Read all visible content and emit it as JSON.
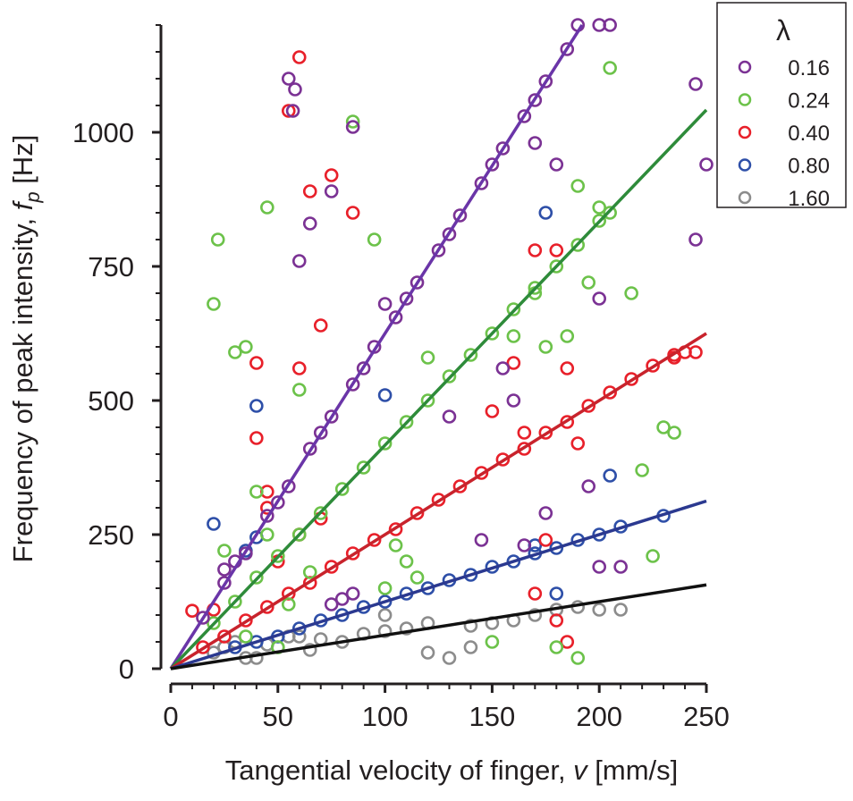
{
  "chart_data": {
    "type": "scatter",
    "xlabel": "Tangential velocity of finger, v [mm/s]",
    "xlabel_parts": {
      "pre": "Tangential velocity of finger, ",
      "var": "v",
      "post": " [mm/s]"
    },
    "ylabel": "Frequency of peak intensity, f_p [Hz]",
    "ylabel_parts": {
      "pre": "Frequency of peak intensity, ",
      "var": "f",
      "sub": "p",
      "post": " [Hz]"
    },
    "xlim": [
      0,
      250
    ],
    "ylim": [
      0,
      1200
    ],
    "x_ticks": [
      0,
      50,
      100,
      150,
      200,
      250
    ],
    "x_tick_labels": [
      "0",
      "50",
      "100",
      "150",
      "200",
      "250"
    ],
    "y_ticks": [
      0,
      250,
      500,
      750,
      1000
    ],
    "y_tick_labels": [
      "0",
      "250",
      "500",
      "750",
      "1000"
    ],
    "grid": false,
    "legend": {
      "title": "λ",
      "placement": "top-right"
    },
    "series": [
      {
        "name": "0.16",
        "color": "#7b3294",
        "line_color": "#6a35a8",
        "fit_slope": 6.25,
        "points": [
          [
            15,
            95
          ],
          [
            25,
            160
          ],
          [
            35,
            215
          ],
          [
            45,
            285
          ],
          [
            55,
            340
          ],
          [
            65,
            410
          ],
          [
            75,
            470
          ],
          [
            85,
            530
          ],
          [
            95,
            600
          ],
          [
            105,
            655
          ],
          [
            115,
            720
          ],
          [
            125,
            780
          ],
          [
            135,
            845
          ],
          [
            145,
            905
          ],
          [
            155,
            970
          ],
          [
            165,
            1030
          ],
          [
            175,
            1095
          ],
          [
            185,
            1155
          ],
          [
            30,
            200
          ],
          [
            50,
            310
          ],
          [
            70,
            440
          ],
          [
            90,
            560
          ],
          [
            110,
            690
          ],
          [
            130,
            810
          ],
          [
            150,
            940
          ],
          [
            170,
            1060
          ],
          [
            55,
            1100
          ],
          [
            58,
            1080
          ],
          [
            57,
            1040
          ],
          [
            25,
            185
          ],
          [
            60,
            760
          ],
          [
            190,
            1200
          ],
          [
            200,
            1200
          ],
          [
            205,
            1200
          ],
          [
            170,
            980
          ],
          [
            180,
            940
          ],
          [
            200,
            690
          ],
          [
            195,
            340
          ],
          [
            175,
            290
          ],
          [
            165,
            230
          ],
          [
            245,
            1090
          ],
          [
            250,
            940
          ],
          [
            245,
            800
          ],
          [
            160,
            500
          ],
          [
            75,
            890
          ],
          [
            65,
            830
          ],
          [
            100,
            680
          ],
          [
            130,
            470
          ],
          [
            155,
            560
          ],
          [
            145,
            240
          ],
          [
            85,
            1010
          ],
          [
            200,
            190
          ],
          [
            210,
            190
          ],
          [
            85,
            140
          ],
          [
            80,
            130
          ],
          [
            75,
            120
          ]
        ]
      },
      {
        "name": "0.24",
        "color": "#6cc24a",
        "line_color": "#2e8b3a",
        "fit_slope": 4.1667,
        "points": [
          [
            20,
            85
          ],
          [
            30,
            125
          ],
          [
            40,
            170
          ],
          [
            50,
            210
          ],
          [
            60,
            250
          ],
          [
            70,
            290
          ],
          [
            80,
            335
          ],
          [
            90,
            375
          ],
          [
            100,
            420
          ],
          [
            110,
            460
          ],
          [
            120,
            500
          ],
          [
            130,
            545
          ],
          [
            140,
            585
          ],
          [
            150,
            625
          ],
          [
            160,
            670
          ],
          [
            170,
            710
          ],
          [
            180,
            750
          ],
          [
            190,
            790
          ],
          [
            200,
            835
          ],
          [
            205,
            850
          ],
          [
            195,
            720
          ],
          [
            185,
            620
          ],
          [
            175,
            600
          ],
          [
            160,
            620
          ],
          [
            65,
            180
          ],
          [
            55,
            120
          ],
          [
            35,
            60
          ],
          [
            50,
            40
          ],
          [
            20,
            680
          ],
          [
            22,
            800
          ],
          [
            30,
            590
          ],
          [
            35,
            600
          ],
          [
            45,
            860
          ],
          [
            85,
            1020
          ],
          [
            95,
            800
          ],
          [
            205,
            1120
          ],
          [
            200,
            860
          ],
          [
            190,
            900
          ],
          [
            215,
            700
          ],
          [
            230,
            450
          ],
          [
            235,
            440
          ],
          [
            220,
            370
          ],
          [
            225,
            210
          ],
          [
            180,
            40
          ],
          [
            190,
            20
          ],
          [
            150,
            50
          ],
          [
            105,
            230
          ],
          [
            100,
            150
          ],
          [
            45,
            250
          ],
          [
            40,
            330
          ],
          [
            60,
            520
          ],
          [
            120,
            580
          ],
          [
            170,
            700
          ],
          [
            25,
            220
          ],
          [
            110,
            200
          ],
          [
            115,
            170
          ]
        ]
      },
      {
        "name": "0.40",
        "color": "#e8202a",
        "line_color": "#c8232c",
        "fit_slope": 2.5,
        "points": [
          [
            15,
            40
          ],
          [
            25,
            60
          ],
          [
            35,
            90
          ],
          [
            45,
            115
          ],
          [
            55,
            140
          ],
          [
            65,
            160
          ],
          [
            75,
            190
          ],
          [
            85,
            215
          ],
          [
            95,
            240
          ],
          [
            105,
            260
          ],
          [
            115,
            290
          ],
          [
            125,
            315
          ],
          [
            135,
            340
          ],
          [
            145,
            365
          ],
          [
            155,
            390
          ],
          [
            165,
            410
          ],
          [
            175,
            440
          ],
          [
            185,
            460
          ],
          [
            195,
            490
          ],
          [
            205,
            515
          ],
          [
            215,
            540
          ],
          [
            225,
            565
          ],
          [
            235,
            585
          ],
          [
            245,
            590
          ],
          [
            50,
            200
          ],
          [
            60,
            250
          ],
          [
            70,
            280
          ],
          [
            45,
            300
          ],
          [
            60,
            1140
          ],
          [
            55,
            1040
          ],
          [
            75,
            920
          ],
          [
            65,
            890
          ],
          [
            85,
            850
          ],
          [
            70,
            640
          ],
          [
            60,
            560
          ],
          [
            40,
            570
          ],
          [
            45,
            330
          ],
          [
            10,
            108
          ],
          [
            20,
            110
          ],
          [
            40,
            430
          ],
          [
            170,
            780
          ],
          [
            180,
            780
          ],
          [
            160,
            570
          ],
          [
            185,
            560
          ],
          [
            165,
            440
          ],
          [
            175,
            240
          ],
          [
            170,
            140
          ],
          [
            180,
            90
          ],
          [
            185,
            50
          ],
          [
            190,
            420
          ],
          [
            235,
            580
          ],
          [
            240,
            590
          ],
          [
            150,
            480
          ]
        ]
      },
      {
        "name": "0.80",
        "color": "#2e4fa8",
        "line_color": "#2b3990",
        "fit_slope": 1.25,
        "points": [
          [
            30,
            40
          ],
          [
            40,
            50
          ],
          [
            50,
            60
          ],
          [
            60,
            75
          ],
          [
            70,
            90
          ],
          [
            80,
            100
          ],
          [
            90,
            115
          ],
          [
            100,
            125
          ],
          [
            110,
            140
          ],
          [
            120,
            150
          ],
          [
            130,
            165
          ],
          [
            140,
            175
          ],
          [
            150,
            190
          ],
          [
            160,
            200
          ],
          [
            170,
            215
          ],
          [
            180,
            225
          ],
          [
            190,
            240
          ],
          [
            200,
            250
          ],
          [
            210,
            265
          ],
          [
            230,
            285
          ],
          [
            35,
            220
          ],
          [
            40,
            245
          ],
          [
            20,
            270
          ],
          [
            40,
            490
          ],
          [
            100,
            510
          ],
          [
            175,
            850
          ],
          [
            205,
            360
          ],
          [
            180,
            140
          ],
          [
            170,
            230
          ]
        ]
      },
      {
        "name": "1.60",
        "color": "#8c8c8c",
        "line_color": "#111111",
        "fit_slope": 0.625,
        "points": [
          [
            20,
            30
          ],
          [
            25,
            40
          ],
          [
            30,
            50
          ],
          [
            35,
            20
          ],
          [
            40,
            20
          ],
          [
            45,
            45
          ],
          [
            50,
            40
          ],
          [
            60,
            60
          ],
          [
            70,
            55
          ],
          [
            80,
            50
          ],
          [
            90,
            65
          ],
          [
            100,
            70
          ],
          [
            110,
            75
          ],
          [
            120,
            30
          ],
          [
            130,
            20
          ],
          [
            140,
            80
          ],
          [
            150,
            85
          ],
          [
            160,
            90
          ],
          [
            170,
            100
          ],
          [
            180,
            110
          ],
          [
            190,
            115
          ],
          [
            200,
            110
          ],
          [
            210,
            110
          ],
          [
            100,
            100
          ],
          [
            140,
            40
          ],
          [
            120,
            85
          ],
          [
            55,
            60
          ],
          [
            65,
            35
          ]
        ]
      }
    ]
  }
}
